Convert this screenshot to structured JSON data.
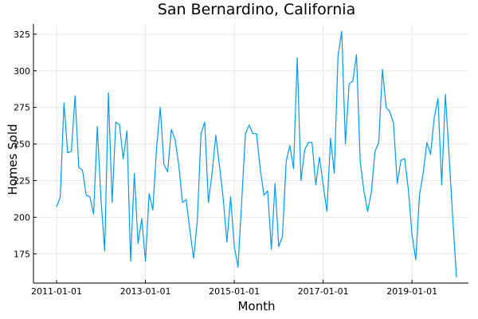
{
  "chart_data": {
    "type": "line",
    "title": "San Bernardino, California",
    "xlabel": "Month",
    "ylabel": "Homes Sold",
    "x_start": "2011-01",
    "x_ticks": [
      "2011-01-01",
      "2013-01-01",
      "2015-01-01",
      "2017-01-01",
      "2019-01-01"
    ],
    "y_ticks": [
      175,
      200,
      225,
      250,
      275,
      300,
      325
    ],
    "ylim": [
      155,
      332
    ],
    "grid": true,
    "legend": "none",
    "line_color": "#009af9",
    "series": [
      {
        "values": [
          207,
          214,
          278,
          244,
          245,
          283,
          234,
          232,
          215,
          214,
          202,
          262,
          212,
          177,
          285,
          210,
          265,
          263,
          240,
          259,
          170,
          230,
          182,
          199,
          170,
          216,
          205,
          247,
          275,
          236,
          231,
          260,
          253,
          236,
          210,
          212,
          191,
          172,
          197,
          257,
          265,
          210,
          230,
          256,
          235,
          213,
          183,
          214,
          180,
          166,
          211,
          257,
          263,
          257,
          257,
          233,
          215,
          218,
          178,
          223,
          180,
          187,
          238,
          249,
          233,
          309,
          225,
          246,
          251,
          251,
          222,
          241,
          222,
          204,
          254,
          230,
          310,
          327,
          250,
          291,
          293,
          311,
          238,
          218,
          204,
          217,
          245,
          251,
          301,
          275,
          272,
          264,
          223,
          239,
          240,
          219,
          188,
          171,
          215,
          230,
          251,
          243,
          268,
          281,
          222,
          284,
          242,
          199,
          159
        ]
      }
    ]
  }
}
